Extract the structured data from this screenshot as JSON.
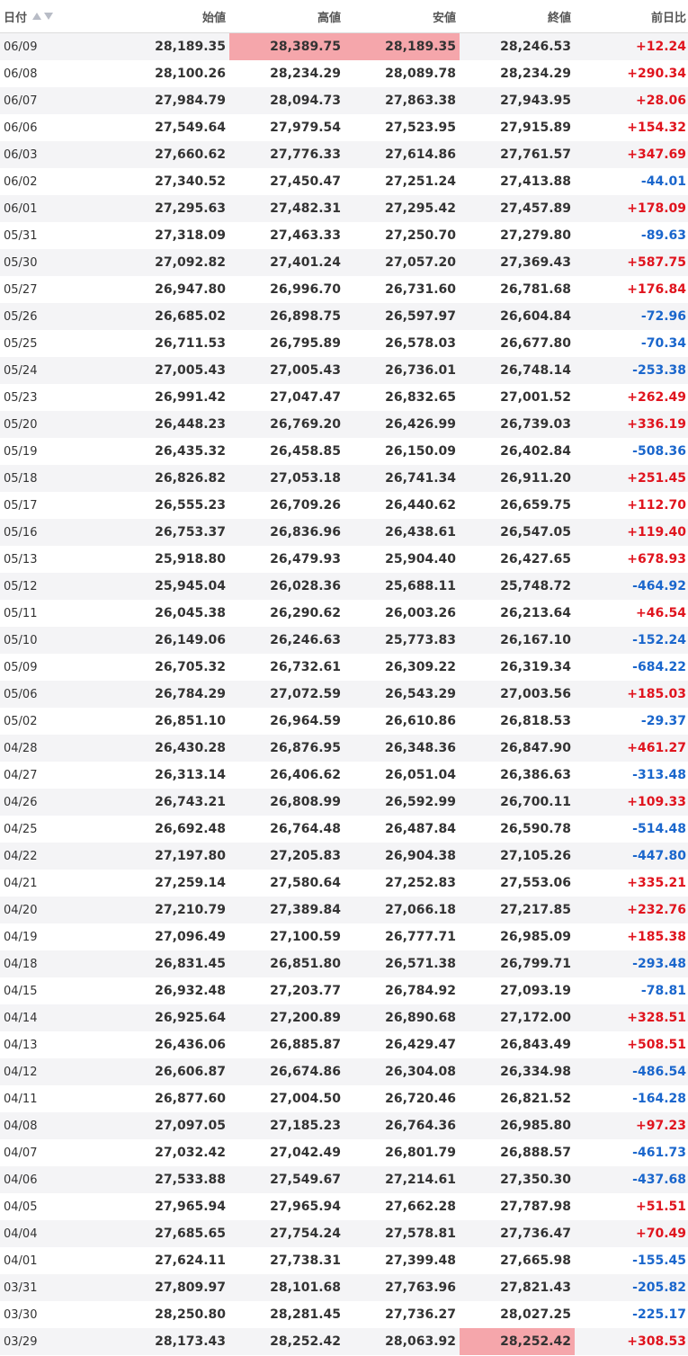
{
  "header": {
    "date": "日付",
    "open": "始値",
    "high": "高値",
    "low": "安値",
    "close": "終値",
    "change": "前日比"
  },
  "colors": {
    "up": "#e0141e",
    "down": "#1a66cc",
    "highlight": "#f5a6ab"
  },
  "rows": [
    {
      "date": "06/09",
      "open": "28,189.35",
      "high": "28,389.75",
      "low": "28,189.35",
      "close": "28,246.53",
      "change": "+12.24",
      "hl": [
        "high",
        "low"
      ]
    },
    {
      "date": "06/08",
      "open": "28,100.26",
      "high": "28,234.29",
      "low": "28,089.78",
      "close": "28,234.29",
      "change": "+290.34",
      "hl": []
    },
    {
      "date": "06/07",
      "open": "27,984.79",
      "high": "28,094.73",
      "low": "27,863.38",
      "close": "27,943.95",
      "change": "+28.06",
      "hl": []
    },
    {
      "date": "06/06",
      "open": "27,549.64",
      "high": "27,979.54",
      "low": "27,523.95",
      "close": "27,915.89",
      "change": "+154.32",
      "hl": []
    },
    {
      "date": "06/03",
      "open": "27,660.62",
      "high": "27,776.33",
      "low": "27,614.86",
      "close": "27,761.57",
      "change": "+347.69",
      "hl": []
    },
    {
      "date": "06/02",
      "open": "27,340.52",
      "high": "27,450.47",
      "low": "27,251.24",
      "close": "27,413.88",
      "change": "-44.01",
      "hl": []
    },
    {
      "date": "06/01",
      "open": "27,295.63",
      "high": "27,482.31",
      "low": "27,295.42",
      "close": "27,457.89",
      "change": "+178.09",
      "hl": []
    },
    {
      "date": "05/31",
      "open": "27,318.09",
      "high": "27,463.33",
      "low": "27,250.70",
      "close": "27,279.80",
      "change": "-89.63",
      "hl": []
    },
    {
      "date": "05/30",
      "open": "27,092.82",
      "high": "27,401.24",
      "low": "27,057.20",
      "close": "27,369.43",
      "change": "+587.75",
      "hl": []
    },
    {
      "date": "05/27",
      "open": "26,947.80",
      "high": "26,996.70",
      "low": "26,731.60",
      "close": "26,781.68",
      "change": "+176.84",
      "hl": []
    },
    {
      "date": "05/26",
      "open": "26,685.02",
      "high": "26,898.75",
      "low": "26,597.97",
      "close": "26,604.84",
      "change": "-72.96",
      "hl": []
    },
    {
      "date": "05/25",
      "open": "26,711.53",
      "high": "26,795.89",
      "low": "26,578.03",
      "close": "26,677.80",
      "change": "-70.34",
      "hl": []
    },
    {
      "date": "05/24",
      "open": "27,005.43",
      "high": "27,005.43",
      "low": "26,736.01",
      "close": "26,748.14",
      "change": "-253.38",
      "hl": []
    },
    {
      "date": "05/23",
      "open": "26,991.42",
      "high": "27,047.47",
      "low": "26,832.65",
      "close": "27,001.52",
      "change": "+262.49",
      "hl": []
    },
    {
      "date": "05/20",
      "open": "26,448.23",
      "high": "26,769.20",
      "low": "26,426.99",
      "close": "26,739.03",
      "change": "+336.19",
      "hl": []
    },
    {
      "date": "05/19",
      "open": "26,435.32",
      "high": "26,458.85",
      "low": "26,150.09",
      "close": "26,402.84",
      "change": "-508.36",
      "hl": []
    },
    {
      "date": "05/18",
      "open": "26,826.82",
      "high": "27,053.18",
      "low": "26,741.34",
      "close": "26,911.20",
      "change": "+251.45",
      "hl": []
    },
    {
      "date": "05/17",
      "open": "26,555.23",
      "high": "26,709.26",
      "low": "26,440.62",
      "close": "26,659.75",
      "change": "+112.70",
      "hl": []
    },
    {
      "date": "05/16",
      "open": "26,753.37",
      "high": "26,836.96",
      "low": "26,438.61",
      "close": "26,547.05",
      "change": "+119.40",
      "hl": []
    },
    {
      "date": "05/13",
      "open": "25,918.80",
      "high": "26,479.93",
      "low": "25,904.40",
      "close": "26,427.65",
      "change": "+678.93",
      "hl": []
    },
    {
      "date": "05/12",
      "open": "25,945.04",
      "high": "26,028.36",
      "low": "25,688.11",
      "close": "25,748.72",
      "change": "-464.92",
      "hl": []
    },
    {
      "date": "05/11",
      "open": "26,045.38",
      "high": "26,290.62",
      "low": "26,003.26",
      "close": "26,213.64",
      "change": "+46.54",
      "hl": []
    },
    {
      "date": "05/10",
      "open": "26,149.06",
      "high": "26,246.63",
      "low": "25,773.83",
      "close": "26,167.10",
      "change": "-152.24",
      "hl": []
    },
    {
      "date": "05/09",
      "open": "26,705.32",
      "high": "26,732.61",
      "low": "26,309.22",
      "close": "26,319.34",
      "change": "-684.22",
      "hl": []
    },
    {
      "date": "05/06",
      "open": "26,784.29",
      "high": "27,072.59",
      "low": "26,543.29",
      "close": "27,003.56",
      "change": "+185.03",
      "hl": []
    },
    {
      "date": "05/02",
      "open": "26,851.10",
      "high": "26,964.59",
      "low": "26,610.86",
      "close": "26,818.53",
      "change": "-29.37",
      "hl": []
    },
    {
      "date": "04/28",
      "open": "26,430.28",
      "high": "26,876.95",
      "low": "26,348.36",
      "close": "26,847.90",
      "change": "+461.27",
      "hl": []
    },
    {
      "date": "04/27",
      "open": "26,313.14",
      "high": "26,406.62",
      "low": "26,051.04",
      "close": "26,386.63",
      "change": "-313.48",
      "hl": []
    },
    {
      "date": "04/26",
      "open": "26,743.21",
      "high": "26,808.99",
      "low": "26,592.99",
      "close": "26,700.11",
      "change": "+109.33",
      "hl": []
    },
    {
      "date": "04/25",
      "open": "26,692.48",
      "high": "26,764.48",
      "low": "26,487.84",
      "close": "26,590.78",
      "change": "-514.48",
      "hl": []
    },
    {
      "date": "04/22",
      "open": "27,197.80",
      "high": "27,205.83",
      "low": "26,904.38",
      "close": "27,105.26",
      "change": "-447.80",
      "hl": []
    },
    {
      "date": "04/21",
      "open": "27,259.14",
      "high": "27,580.64",
      "low": "27,252.83",
      "close": "27,553.06",
      "change": "+335.21",
      "hl": []
    },
    {
      "date": "04/20",
      "open": "27,210.79",
      "high": "27,389.84",
      "low": "27,066.18",
      "close": "27,217.85",
      "change": "+232.76",
      "hl": []
    },
    {
      "date": "04/19",
      "open": "27,096.49",
      "high": "27,100.59",
      "low": "26,777.71",
      "close": "26,985.09",
      "change": "+185.38",
      "hl": []
    },
    {
      "date": "04/18",
      "open": "26,831.45",
      "high": "26,851.80",
      "low": "26,571.38",
      "close": "26,799.71",
      "change": "-293.48",
      "hl": []
    },
    {
      "date": "04/15",
      "open": "26,932.48",
      "high": "27,203.77",
      "low": "26,784.92",
      "close": "27,093.19",
      "change": "-78.81",
      "hl": []
    },
    {
      "date": "04/14",
      "open": "26,925.64",
      "high": "27,200.89",
      "low": "26,890.68",
      "close": "27,172.00",
      "change": "+328.51",
      "hl": []
    },
    {
      "date": "04/13",
      "open": "26,436.06",
      "high": "26,885.87",
      "low": "26,429.47",
      "close": "26,843.49",
      "change": "+508.51",
      "hl": []
    },
    {
      "date": "04/12",
      "open": "26,606.87",
      "high": "26,674.86",
      "low": "26,304.08",
      "close": "26,334.98",
      "change": "-486.54",
      "hl": []
    },
    {
      "date": "04/11",
      "open": "26,877.60",
      "high": "27,004.50",
      "low": "26,720.46",
      "close": "26,821.52",
      "change": "-164.28",
      "hl": []
    },
    {
      "date": "04/08",
      "open": "27,097.05",
      "high": "27,185.23",
      "low": "26,764.36",
      "close": "26,985.80",
      "change": "+97.23",
      "hl": []
    },
    {
      "date": "04/07",
      "open": "27,032.42",
      "high": "27,042.49",
      "low": "26,801.79",
      "close": "26,888.57",
      "change": "-461.73",
      "hl": []
    },
    {
      "date": "04/06",
      "open": "27,533.88",
      "high": "27,549.67",
      "low": "27,214.61",
      "close": "27,350.30",
      "change": "-437.68",
      "hl": []
    },
    {
      "date": "04/05",
      "open": "27,965.94",
      "high": "27,965.94",
      "low": "27,662.28",
      "close": "27,787.98",
      "change": "+51.51",
      "hl": []
    },
    {
      "date": "04/04",
      "open": "27,685.65",
      "high": "27,754.24",
      "low": "27,578.81",
      "close": "27,736.47",
      "change": "+70.49",
      "hl": []
    },
    {
      "date": "04/01",
      "open": "27,624.11",
      "high": "27,738.31",
      "low": "27,399.48",
      "close": "27,665.98",
      "change": "-155.45",
      "hl": []
    },
    {
      "date": "03/31",
      "open": "27,809.97",
      "high": "28,101.68",
      "low": "27,763.96",
      "close": "27,821.43",
      "change": "-205.82",
      "hl": []
    },
    {
      "date": "03/30",
      "open": "28,250.80",
      "high": "28,281.45",
      "low": "27,736.27",
      "close": "28,027.25",
      "change": "-225.17",
      "hl": []
    },
    {
      "date": "03/29",
      "open": "28,173.43",
      "high": "28,252.42",
      "low": "28,063.92",
      "close": "28,252.42",
      "change": "+308.53",
      "hl": [
        "close"
      ]
    }
  ]
}
